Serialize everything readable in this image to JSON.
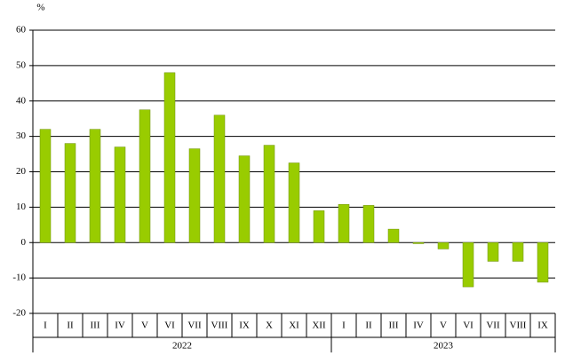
{
  "chart_data": {
    "type": "bar",
    "y_unit_label": "%",
    "categories": [
      "I",
      "II",
      "III",
      "IV",
      "V",
      "VI",
      "VII",
      "VIII",
      "IX",
      "X",
      "XI",
      "XII",
      "I",
      "II",
      "III",
      "IV",
      "V",
      "VI",
      "VII",
      "VIII",
      "IX"
    ],
    "groups": [
      {
        "label": "2022",
        "count": 12
      },
      {
        "label": "2023",
        "count": 9
      }
    ],
    "values": [
      32,
      28,
      32,
      27,
      37.5,
      48,
      26.5,
      36,
      24.5,
      27.5,
      22.5,
      9,
      10.8,
      10.5,
      3.8,
      -0.3,
      -1.8,
      -12.5,
      -5.3,
      -5.3,
      -11.2
    ],
    "color": "#99cc00",
    "ylim": [
      -20,
      60
    ],
    "yticks": [
      -20,
      -10,
      0,
      10,
      20,
      30,
      40,
      50,
      60
    ],
    "grid": true
  }
}
